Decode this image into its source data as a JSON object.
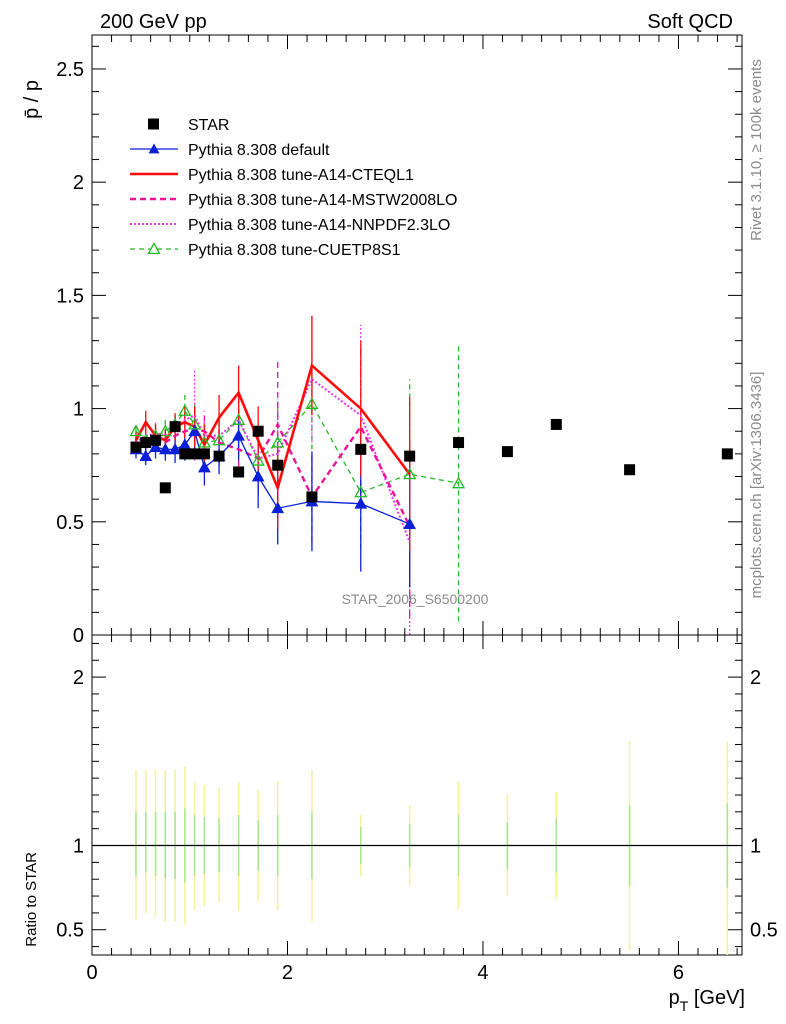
{
  "header": {
    "left": "200 GeV pp",
    "right": "Soft QCD"
  },
  "side_text": {
    "rivet": "Rivet 3.1.10, ≥ 100k events",
    "mcplots": "mcplots.cern.ch [arXiv:1306.3436]"
  },
  "watermark": "STAR_2006_S6500200",
  "colors": {
    "star": "#000000",
    "default": "#0a1fd6",
    "cteql1": "#ff0a0a",
    "mstw": "#ee1199",
    "nnpdf": "#ee33ee",
    "cuetp8s1": "#22bb22",
    "band_yellow": "#f2f299",
    "band_green": "#a6e68c"
  },
  "chart_data": [
    {
      "type": "line",
      "panel": "main",
      "ylabel": "p̄ / p",
      "xlim": [
        0,
        6.65
      ],
      "ylim": [
        0,
        2.65
      ],
      "y_ticks": [
        0,
        0.5,
        1,
        1.5,
        2,
        2.5
      ],
      "y_tick_labels": [
        "0",
        "0.5",
        "1",
        "1.5",
        "2",
        "2.5"
      ],
      "legend_position": "top-left",
      "star": {
        "name": "STAR",
        "points": [
          {
            "x": 0.45,
            "y": 0.83
          },
          {
            "x": 0.55,
            "y": 0.85
          },
          {
            "x": 0.65,
            "y": 0.86
          },
          {
            "x": 0.75,
            "y": 0.65
          },
          {
            "x": 0.85,
            "y": 0.92
          },
          {
            "x": 0.95,
            "y": 0.8
          },
          {
            "x": 1.05,
            "y": 0.8
          },
          {
            "x": 1.15,
            "y": 0.8
          },
          {
            "x": 1.3,
            "y": 0.79
          },
          {
            "x": 1.5,
            "y": 0.72
          },
          {
            "x": 1.7,
            "y": 0.9
          },
          {
            "x": 1.9,
            "y": 0.75
          },
          {
            "x": 2.25,
            "y": 0.61
          },
          {
            "x": 2.75,
            "y": 0.82
          },
          {
            "x": 3.25,
            "y": 0.79
          },
          {
            "x": 3.75,
            "y": 0.85
          },
          {
            "x": 4.25,
            "y": 0.81
          },
          {
            "x": 4.75,
            "y": 0.93
          },
          {
            "x": 5.5,
            "y": 0.73
          },
          {
            "x": 6.5,
            "y": 0.8
          }
        ]
      },
      "x": [
        0.45,
        0.55,
        0.65,
        0.75,
        0.85,
        0.95,
        1.05,
        1.15,
        1.3,
        1.5,
        1.7,
        1.9,
        2.25,
        2.75,
        3.25,
        3.75
      ],
      "series": [
        {
          "name": "Pythia 8.308 default",
          "key": "default",
          "values": [
            0.82,
            0.79,
            0.83,
            0.82,
            0.82,
            0.84,
            0.9,
            0.74,
            0.79,
            0.88,
            0.7,
            0.56,
            0.59,
            0.58,
            0.49,
            null
          ],
          "errors": [
            0.04,
            0.04,
            0.05,
            0.05,
            0.06,
            0.07,
            0.09,
            0.08,
            0.08,
            0.11,
            0.14,
            0.16,
            0.22,
            0.3,
            0.28,
            null
          ]
        },
        {
          "name": "Pythia 8.308 tune-A14-CTEQL1",
          "key": "cteql1",
          "values": [
            0.86,
            0.94,
            0.88,
            0.86,
            0.92,
            0.94,
            0.92,
            0.84,
            0.96,
            1.07,
            0.86,
            0.65,
            1.19,
            1.0,
            0.71,
            null
          ],
          "errors": [
            0.04,
            0.05,
            0.05,
            0.05,
            0.06,
            0.07,
            0.09,
            0.09,
            0.1,
            0.12,
            0.15,
            0.18,
            0.22,
            0.3,
            0.34,
            null
          ]
        },
        {
          "name": "Pythia 8.308 tune-A14-MSTW2008LO",
          "key": "mstw",
          "values": [
            0.84,
            0.85,
            0.86,
            0.85,
            0.88,
            0.9,
            0.91,
            0.9,
            0.85,
            0.82,
            0.78,
            0.93,
            0.61,
            0.92,
            0.48,
            null
          ],
          "errors": [
            0.04,
            0.05,
            0.05,
            0.05,
            0.06,
            0.07,
            0.1,
            0.09,
            0.1,
            0.12,
            0.14,
            0.28,
            0.2,
            0.35,
            0.4,
            null
          ]
        },
        {
          "name": "Pythia 8.308 tune-A14-NNPDF2.3LO",
          "key": "nnpdf",
          "values": [
            0.85,
            0.88,
            0.89,
            0.88,
            0.91,
            0.95,
            0.97,
            0.88,
            0.88,
            0.95,
            0.78,
            0.8,
            1.13,
            0.97,
            0.41,
            null
          ],
          "errors": [
            0.04,
            0.05,
            0.05,
            0.05,
            0.06,
            0.07,
            0.2,
            0.09,
            0.1,
            0.12,
            0.15,
            0.24,
            0.28,
            0.4,
            0.42,
            null
          ]
        },
        {
          "name": "Pythia 8.308 tune-CUETP8S1",
          "key": "cuetp8s1",
          "values": [
            0.9,
            0.86,
            0.88,
            0.9,
            0.93,
            0.99,
            0.93,
            0.85,
            0.86,
            0.95,
            0.77,
            0.85,
            1.02,
            0.63,
            0.71,
            0.67
          ],
          "errors": [
            0.04,
            0.05,
            0.05,
            0.05,
            0.06,
            0.07,
            0.09,
            0.09,
            0.1,
            0.12,
            0.15,
            0.18,
            0.2,
            0.25,
            0.42,
            0.61
          ]
        }
      ],
      "legend": [
        "STAR",
        "Pythia 8.308 default",
        "Pythia 8.308 tune-A14-CTEQL1",
        "Pythia 8.308 tune-A14-MSTW2008LO",
        "Pythia 8.308 tune-A14-NNPDF2.3LO",
        "Pythia 8.308 tune-CUETP8S1"
      ]
    },
    {
      "type": "line",
      "panel": "ratio",
      "ylabel": "Ratio to STAR",
      "xlabel": "p_T [GeV]",
      "xlim": [
        0,
        6.65
      ],
      "x_ticks": [
        0,
        2,
        4,
        6
      ],
      "x_tick_labels": [
        "0",
        "2",
        "4",
        "6"
      ],
      "ylim": [
        0.35,
        2.25
      ],
      "y_ticks": [
        0.5,
        1,
        2
      ],
      "y_tick_labels": [
        "0.5",
        "1",
        "2"
      ],
      "reference_line": 1,
      "bands": [
        {
          "x": 0.45,
          "yellow": [
            0.56,
            1.45
          ],
          "green": [
            0.82,
            1.2
          ]
        },
        {
          "x": 0.55,
          "yellow": [
            0.6,
            1.45
          ],
          "green": [
            0.84,
            1.2
          ]
        },
        {
          "x": 0.65,
          "yellow": [
            0.58,
            1.45
          ],
          "green": [
            0.82,
            1.2
          ]
        },
        {
          "x": 0.75,
          "yellow": [
            0.55,
            1.45
          ],
          "green": [
            0.8,
            1.2
          ]
        },
        {
          "x": 0.85,
          "yellow": [
            0.55,
            1.45
          ],
          "green": [
            0.8,
            1.2
          ]
        },
        {
          "x": 0.95,
          "yellow": [
            0.53,
            1.47
          ],
          "green": [
            0.78,
            1.22
          ]
        },
        {
          "x": 1.05,
          "yellow": [
            0.62,
            1.38
          ],
          "green": [
            0.82,
            1.18
          ]
        },
        {
          "x": 1.15,
          "yellow": [
            0.64,
            1.36
          ],
          "green": [
            0.83,
            1.17
          ]
        },
        {
          "x": 1.3,
          "yellow": [
            0.66,
            1.34
          ],
          "green": [
            0.84,
            1.16
          ]
        },
        {
          "x": 1.5,
          "yellow": [
            0.62,
            1.38
          ],
          "green": [
            0.82,
            1.18
          ]
        },
        {
          "x": 1.7,
          "yellow": [
            0.67,
            1.33
          ],
          "green": [
            0.85,
            1.15
          ]
        },
        {
          "x": 1.9,
          "yellow": [
            0.62,
            1.38
          ],
          "green": [
            0.82,
            1.18
          ]
        },
        {
          "x": 2.25,
          "yellow": [
            0.55,
            1.45
          ],
          "green": [
            0.8,
            1.2
          ]
        },
        {
          "x": 2.75,
          "yellow": [
            0.82,
            1.18
          ],
          "green": [
            0.89,
            1.11
          ]
        },
        {
          "x": 3.25,
          "yellow": [
            0.76,
            1.24
          ],
          "green": [
            0.87,
            1.13
          ]
        },
        {
          "x": 3.75,
          "yellow": [
            0.62,
            1.38
          ],
          "green": [
            0.82,
            1.18
          ]
        },
        {
          "x": 4.25,
          "yellow": [
            0.7,
            1.3
          ],
          "green": [
            0.86,
            1.14
          ]
        },
        {
          "x": 4.75,
          "yellow": [
            0.68,
            1.32
          ],
          "green": [
            0.84,
            1.16
          ]
        },
        {
          "x": 5.5,
          "yellow": [
            0.38,
            1.62
          ],
          "green": [
            0.76,
            1.24
          ]
        },
        {
          "x": 6.5,
          "yellow": [
            0.35,
            1.62
          ],
          "green": [
            0.75,
            1.25
          ]
        }
      ]
    }
  ]
}
